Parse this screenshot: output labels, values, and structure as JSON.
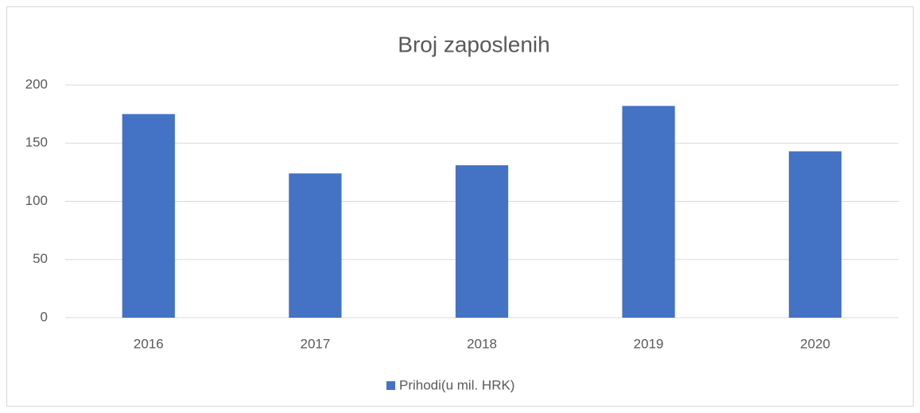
{
  "chart_data": {
    "type": "bar",
    "title": "Broj zaposlenih",
    "categories": [
      "2016",
      "2017",
      "2018",
      "2019",
      "2020"
    ],
    "series": [
      {
        "name": "Prihodi(u mil. HRK)",
        "color": "#4472c4",
        "values": [
          175,
          124,
          131,
          182,
          143
        ]
      }
    ],
    "ylim": [
      0,
      200
    ],
    "yticks": [
      0,
      50,
      100,
      150,
      200
    ],
    "grid": true,
    "legend": "bottom"
  }
}
